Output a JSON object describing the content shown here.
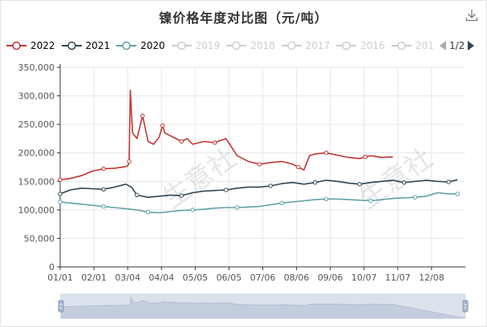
{
  "chart_data": {
    "type": "line",
    "title": "镍价格年度对比图（元/吨）",
    "xlabel": "",
    "ylabel": "",
    "ylim": [
      0,
      350000
    ],
    "yticks": [
      "0",
      "50,000",
      "100,000",
      "150,000",
      "200,000",
      "250,000",
      "300,000",
      "350,000"
    ],
    "xticks": [
      "01/01",
      "02/01",
      "03/04",
      "04/04",
      "05/05",
      "06/05",
      "07/06",
      "08/06",
      "09/06",
      "10/07",
      "11/07",
      "12/08"
    ],
    "grid": true,
    "legend_position": "top-left",
    "legend_page": "1/2",
    "watermark": [
      "生意社",
      "生意社"
    ],
    "series": [
      {
        "name": "2022",
        "color": "#c23531",
        "x": [
          1,
          10,
          20,
          30,
          40,
          50,
          60,
          62,
          63,
          64,
          66,
          70,
          75,
          80,
          85,
          90,
          93,
          95,
          100,
          105,
          110,
          115,
          120,
          130,
          140,
          150,
          160,
          170,
          180,
          190,
          200,
          210,
          215,
          220,
          225,
          230,
          240,
          250,
          260,
          270,
          275,
          280,
          290,
          300
        ],
        "y": [
          153000,
          155000,
          160000,
          168000,
          172000,
          173000,
          176000,
          178000,
          185000,
          310000,
          235000,
          225000,
          265000,
          220000,
          215000,
          228000,
          248000,
          235000,
          230000,
          225000,
          220000,
          225000,
          215000,
          220000,
          218000,
          225000,
          195000,
          185000,
          180000,
          183000,
          185000,
          180000,
          175000,
          170000,
          195000,
          198000,
          200000,
          196000,
          192000,
          190000,
          193000,
          195000,
          192000,
          193000
        ]
      },
      {
        "name": "2021",
        "color": "#2f4554",
        "x": [
          1,
          10,
          20,
          30,
          40,
          50,
          60,
          65,
          70,
          80,
          90,
          100,
          110,
          120,
          130,
          140,
          150,
          160,
          170,
          180,
          190,
          200,
          210,
          220,
          230,
          240,
          250,
          260,
          270,
          280,
          290,
          300,
          310,
          320,
          330,
          340,
          350,
          358
        ],
        "y": [
          128000,
          135000,
          138000,
          137000,
          136000,
          140000,
          145000,
          140000,
          126000,
          122000,
          124000,
          126000,
          125000,
          130000,
          133000,
          134000,
          135000,
          138000,
          140000,
          140000,
          142000,
          146000,
          148000,
          145000,
          148000,
          152000,
          150000,
          147000,
          145000,
          148000,
          150000,
          152000,
          148000,
          150000,
          152000,
          150000,
          149000,
          153000
        ]
      },
      {
        "name": "2020",
        "color": "#61a0a8",
        "x": [
          1,
          10,
          20,
          30,
          40,
          50,
          60,
          70,
          80,
          90,
          100,
          110,
          120,
          130,
          140,
          150,
          160,
          170,
          180,
          190,
          200,
          210,
          220,
          230,
          240,
          250,
          260,
          270,
          280,
          290,
          300,
          310,
          320,
          330,
          340,
          350,
          358
        ],
        "y": [
          114000,
          112000,
          110000,
          108000,
          106000,
          104000,
          102000,
          100000,
          96000,
          95000,
          97000,
          99000,
          100000,
          101000,
          103000,
          104000,
          104000,
          105000,
          106000,
          109000,
          112000,
          114000,
          116000,
          118000,
          119000,
          119000,
          118000,
          117000,
          116000,
          118000,
          120000,
          121000,
          122000,
          124000,
          130000,
          128000,
          128000
        ]
      },
      {
        "name": "2019",
        "color": "#cccccc",
        "visible": false
      },
      {
        "name": "2018",
        "color": "#cccccc",
        "visible": false
      },
      {
        "name": "2017",
        "color": "#cccccc",
        "visible": false
      },
      {
        "name": "2016",
        "color": "#cccccc",
        "visible": false
      },
      {
        "name": "201",
        "color": "#cccccc",
        "visible": false
      }
    ]
  }
}
